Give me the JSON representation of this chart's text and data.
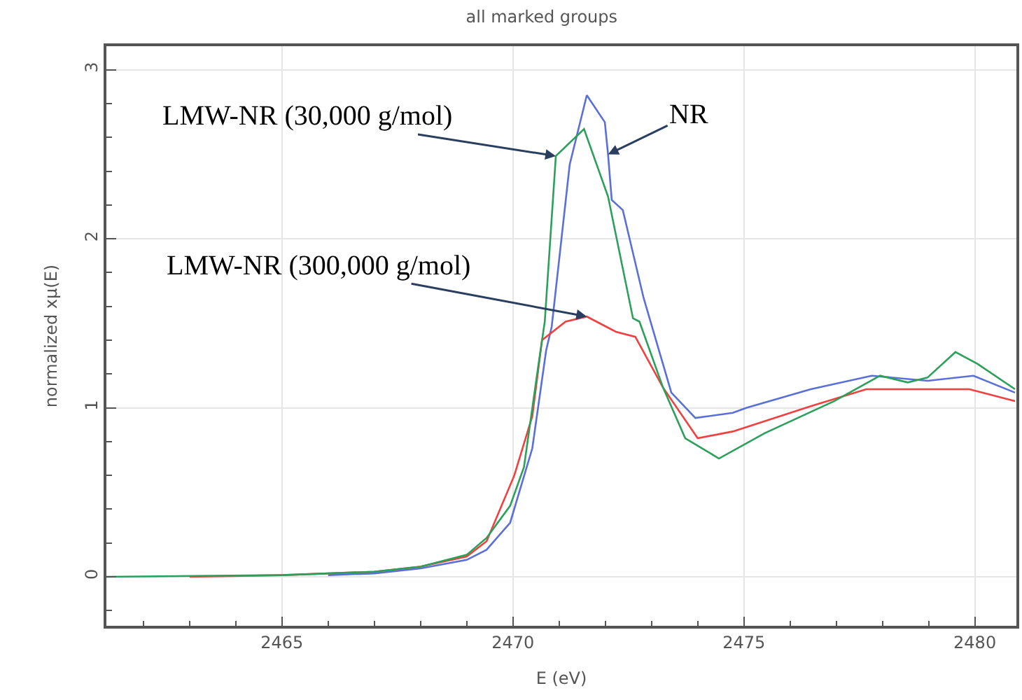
{
  "chart_data": {
    "type": "line",
    "title": "all marked groups",
    "xlabel": "E (eV)",
    "ylabel": "normalized xμ(E)",
    "xlim": [
      2461.2,
      2480.9
    ],
    "xticks": [
      2465,
      2470,
      2475,
      2480
    ],
    "ylim": [
      -0.29,
      3.14
    ],
    "yticks": [
      0,
      1,
      2,
      3
    ],
    "grid": true,
    "series": [
      {
        "color": "#5a6fd8",
        "x": [
          2466,
          2467,
          2468,
          2469,
          2469.43,
          2469.94,
          2470.42,
          2470.72,
          2470.84,
          2471.23,
          2471.6,
          2471.99,
          2472.06,
          2472.14,
          2472.38,
          2472.83,
          2473.43,
          2473.95,
          2474.76,
          2475.06,
          2476.45,
          2477.77,
          2478.98,
          2479.97,
          2480.87
        ],
        "values": [
          0.01,
          0.02,
          0.05,
          0.1,
          0.16,
          0.32,
          0.76,
          1.34,
          1.48,
          2.44,
          2.85,
          2.69,
          2.5,
          2.23,
          2.17,
          1.65,
          1.09,
          0.94,
          0.97,
          1.0,
          1.11,
          1.19,
          1.16,
          1.19,
          1.09
        ]
      },
      {
        "color": "#2ca05a",
        "x": [
          2461.2,
          2465,
          2467,
          2468,
          2469,
          2469.43,
          2469.94,
          2470.24,
          2470.54,
          2470.69,
          2470.93,
          2471.54,
          2472.06,
          2472.6,
          2472.74,
          2473.25,
          2473.73,
          2474.46,
          2475.45,
          2476.96,
          2477.95,
          2478.55,
          2478.98,
          2479.58,
          2480.06,
          2480.87
        ],
        "values": [
          0,
          0.01,
          0.03,
          0.06,
          0.13,
          0.23,
          0.42,
          0.65,
          1.23,
          1.51,
          2.49,
          2.65,
          2.25,
          1.53,
          1.51,
          1.12,
          0.82,
          0.7,
          0.85,
          1.04,
          1.19,
          1.15,
          1.18,
          1.33,
          1.26,
          1.11
        ]
      },
      {
        "color": "#f04040",
        "x": [
          2463,
          2465,
          2467,
          2468,
          2469,
          2469.43,
          2470.03,
          2470.42,
          2470.63,
          2471.14,
          2471.6,
          2472.23,
          2472.65,
          2473.25,
          2474.0,
          2474.76,
          2476.45,
          2477.65,
          2478.98,
          2479.88,
          2480.87
        ],
        "values": [
          0,
          0.01,
          0.03,
          0.06,
          0.12,
          0.21,
          0.6,
          0.95,
          1.4,
          1.51,
          1.54,
          1.45,
          1.42,
          1.12,
          0.82,
          0.86,
          1.01,
          1.11,
          1.11,
          1.11,
          1.04
        ]
      }
    ],
    "annotations": [
      {
        "text": "LMW-NR (30,000 g/mol)",
        "x": 2470.93,
        "y": 2.49
      },
      {
        "text": "NR",
        "x": 2472.06,
        "y": 2.5
      },
      {
        "text": "LMW-NR (300,000 g/mol)",
        "x": 2471.6,
        "y": 1.54
      }
    ]
  }
}
